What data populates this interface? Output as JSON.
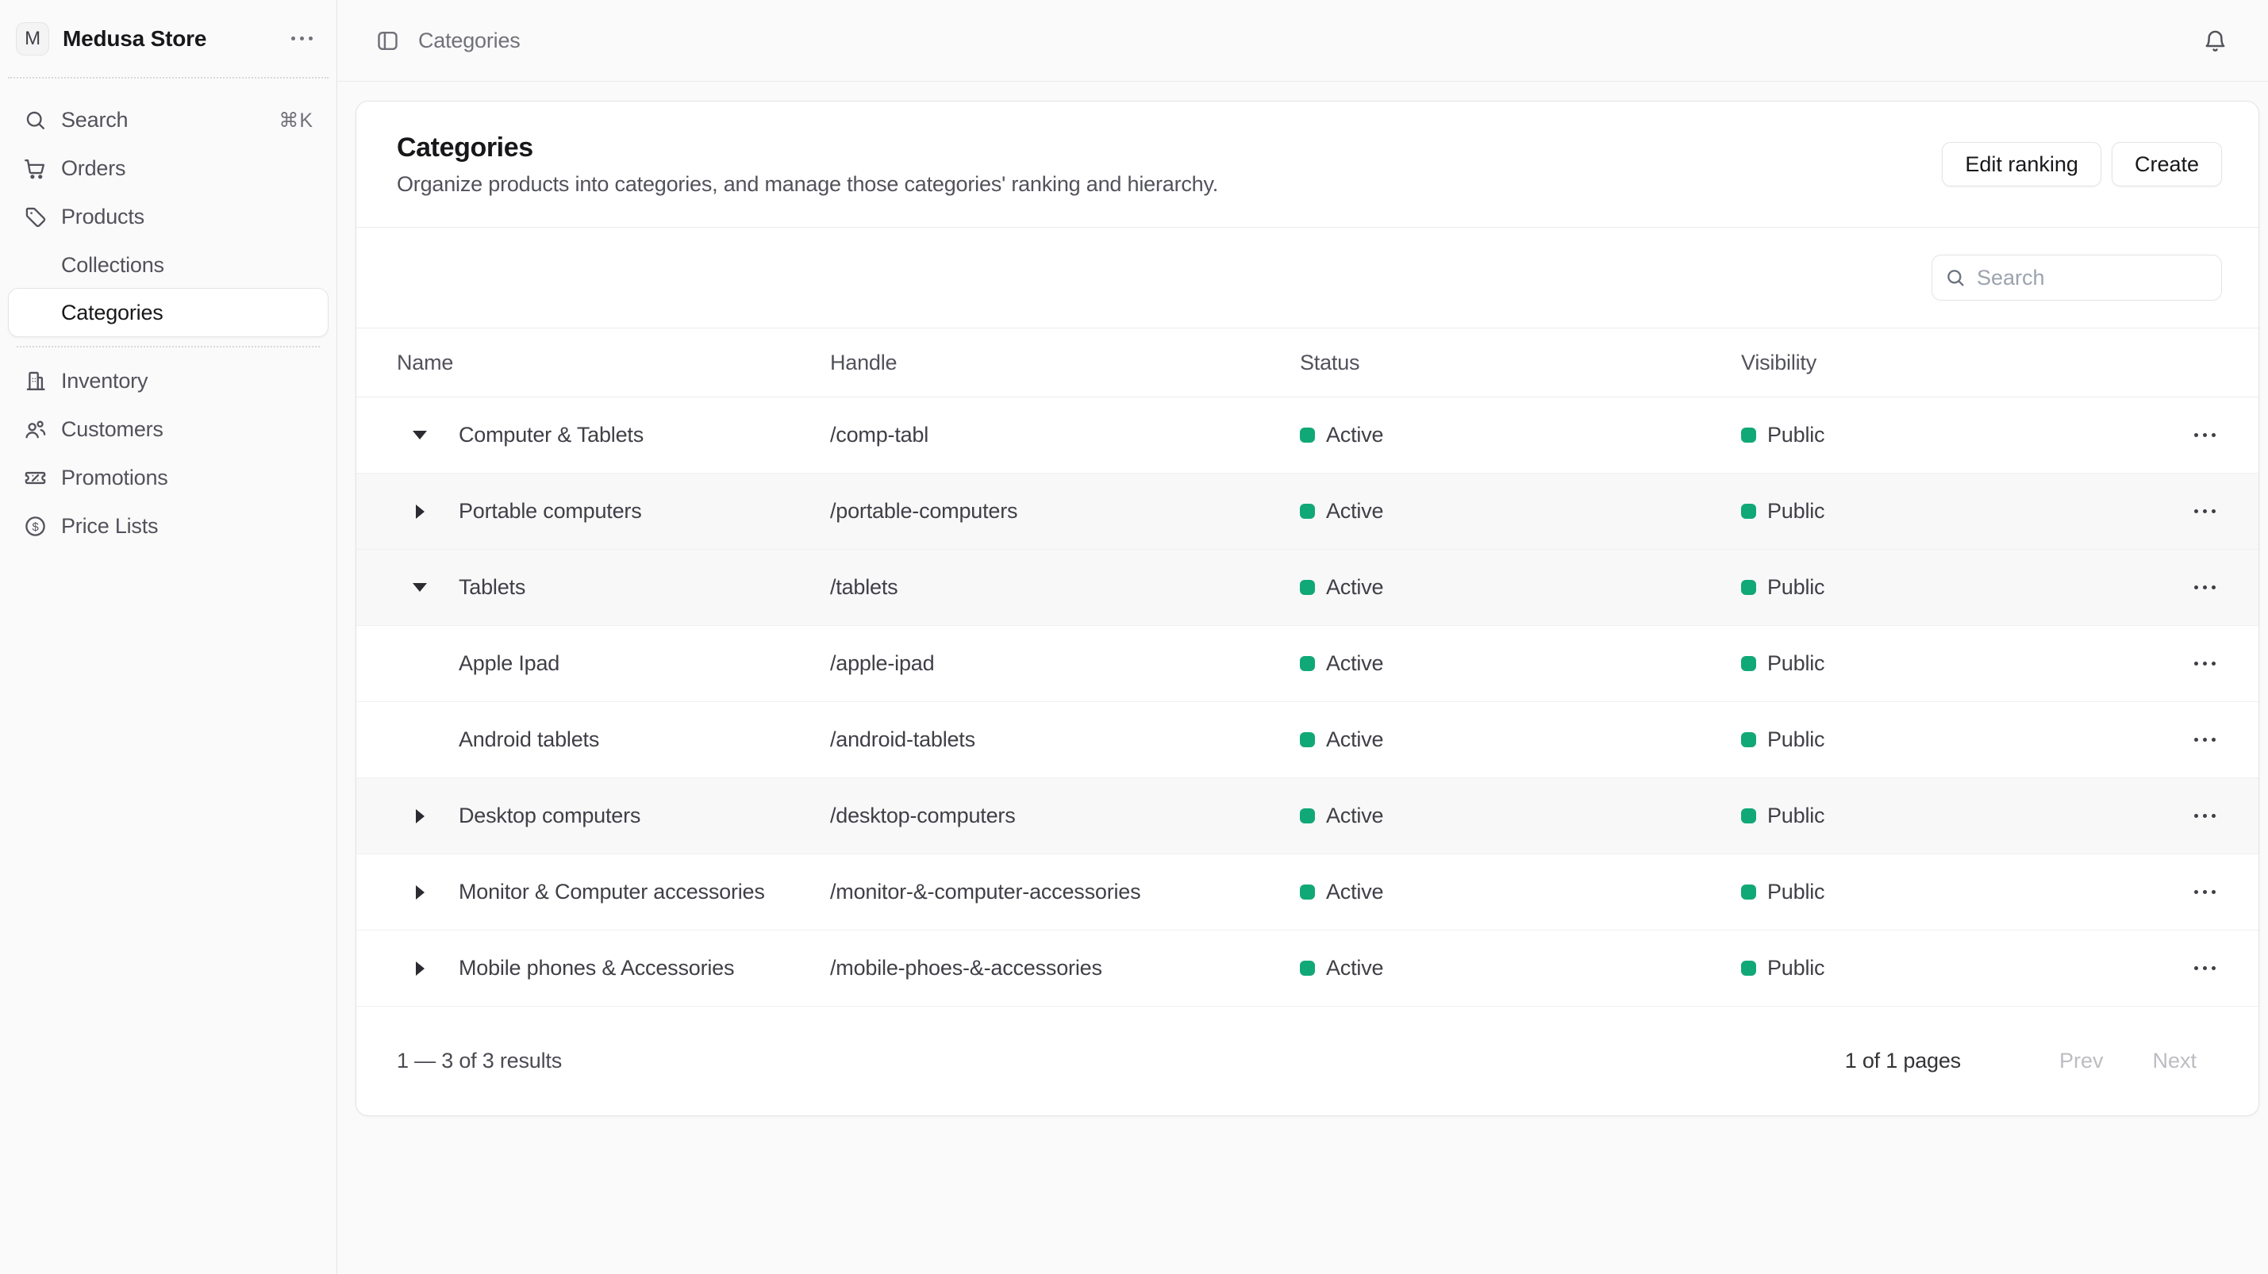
{
  "app": {
    "store": {
      "name": "Medusa Store",
      "initial": "M"
    }
  },
  "topbar": {
    "breadcrumb": "Categories"
  },
  "sidebar": {
    "search": {
      "label": "Search",
      "shortcut": "⌘K"
    },
    "items": [
      {
        "label": "Orders",
        "icon": "cart-icon"
      },
      {
        "label": "Products",
        "icon": "tag-icon"
      },
      {
        "label": "Collections",
        "indent": true
      },
      {
        "label": "Categories",
        "indent": true,
        "active": true
      },
      {
        "label": "Inventory",
        "icon": "building-icon"
      },
      {
        "label": "Customers",
        "icon": "users-icon"
      },
      {
        "label": "Promotions",
        "icon": "ticket-icon"
      },
      {
        "label": "Price Lists",
        "icon": "price-list-icon"
      }
    ]
  },
  "page": {
    "title": "Categories",
    "description": "Organize products into categories, and manage those categories' ranking and hierarchy.",
    "actions": {
      "edit_ranking": "Edit ranking",
      "create": "Create"
    }
  },
  "toolbar": {
    "search_placeholder": "Search"
  },
  "table": {
    "columns": [
      "Name",
      "Handle",
      "Status",
      "Visibility"
    ],
    "status_color": "#11a877",
    "rows": [
      {
        "name": "Computer & Tablets",
        "handle": "/comp-tabl",
        "status": "Active",
        "visibility": "Public",
        "expander": "down",
        "shaded": false
      },
      {
        "name": "Portable computers",
        "handle": "/portable-computers",
        "status": "Active",
        "visibility": "Public",
        "expander": "right",
        "shaded": true
      },
      {
        "name": "Tablets",
        "handle": "/tablets",
        "status": "Active",
        "visibility": "Public",
        "expander": "down",
        "shaded": true
      },
      {
        "name": "Apple Ipad",
        "handle": "/apple-ipad",
        "status": "Active",
        "visibility": "Public",
        "expander": "none",
        "shaded": false
      },
      {
        "name": "Android tablets",
        "handle": "/android-tablets",
        "status": "Active",
        "visibility": "Public",
        "expander": "none",
        "shaded": false
      },
      {
        "name": "Desktop computers",
        "handle": "/desktop-computers",
        "status": "Active",
        "visibility": "Public",
        "expander": "right",
        "shaded": true
      },
      {
        "name": "Monitor & Computer accessories",
        "handle": "/monitor-&-computer-accessories",
        "status": "Active",
        "visibility": "Public",
        "expander": "right",
        "shaded": false
      },
      {
        "name": "Mobile phones & Accessories",
        "handle": "/mobile-phoes-&-accessories",
        "status": "Active",
        "visibility": "Public",
        "expander": "right",
        "shaded": false
      }
    ]
  },
  "pagination": {
    "results": "1 — 3 of 3 results",
    "pages": "1 of 1 pages",
    "prev": "Prev",
    "next": "Next"
  }
}
